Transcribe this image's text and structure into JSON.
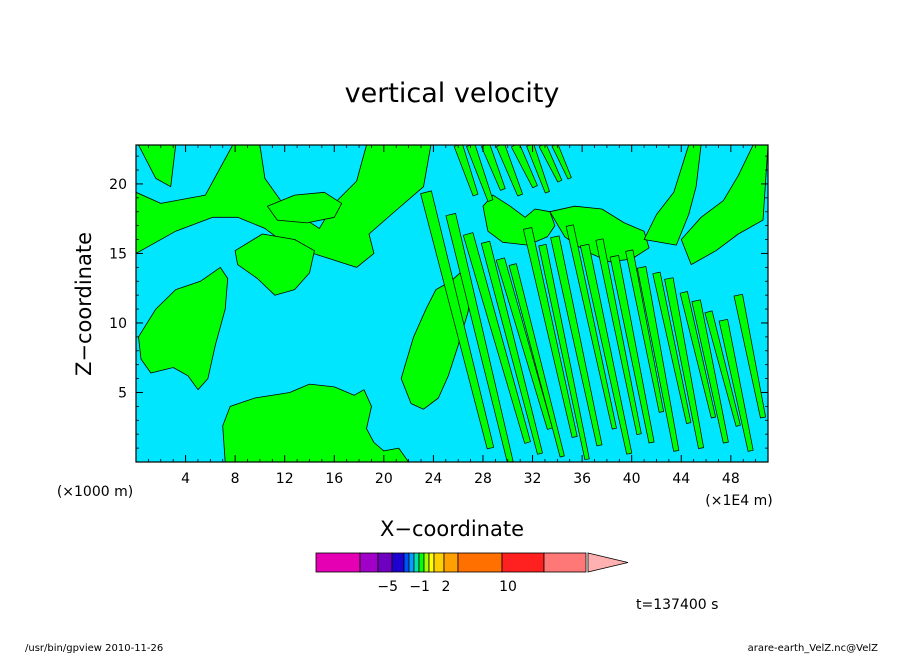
{
  "chart_data": {
    "type": "heatmap",
    "title": "vertical velocity",
    "xlabel": "X−coordinate",
    "ylabel": "Z−coordinate",
    "x_unit_left": "(×1000 m)",
    "x_unit_right": "(×1E4 m)",
    "xlim": [
      0,
      51
    ],
    "ylim": [
      0,
      22.8
    ],
    "x_ticks": [
      4,
      8,
      12,
      16,
      20,
      24,
      28,
      32,
      36,
      40,
      44,
      48
    ],
    "y_ticks": [
      5,
      10,
      15,
      20
    ],
    "time_label": "t=137400 s",
    "colorbar": {
      "colors": [
        "#e600b4",
        "#a000c8",
        "#7000c0",
        "#1e00d0",
        "#0050ff",
        "#00a0ff",
        "#00e0b0",
        "#00ff00",
        "#a0ff00",
        "#ffff00",
        "#ffd000",
        "#ffa000",
        "#ff7000",
        "#ff2020",
        "#ff7878",
        "#ffb0b0"
      ],
      "labels": [
        {
          "text": "−5",
          "at": 0.36
        },
        {
          "text": "−1",
          "at": 0.53
        },
        {
          "text": "2",
          "at": 0.67
        },
        {
          "text": "10",
          "at": 1.0
        }
      ]
    },
    "fill_colors": {
      "negative": "#00e6ff",
      "positive": "#00ff00"
    },
    "contours": {
      "blobs": [
        [
          0.2,
          22.8,
          1.6,
          20.4,
          2.8,
          19.8,
          3.2,
          22.8
        ],
        [
          0.0,
          19.4,
          2.0,
          18.6,
          5.6,
          19.2,
          7.8,
          22.8,
          10.0,
          22.8,
          10.4,
          20.4,
          12.0,
          18.4,
          14.8,
          16.8,
          16.0,
          18.6,
          17.8,
          20.2,
          18.6,
          22.8,
          23.8,
          22.8,
          23.2,
          19.8,
          20.6,
          17.8,
          18.8,
          16.4,
          19.2,
          15.0,
          17.8,
          14.0,
          15.0,
          14.8,
          12.2,
          15.6,
          10.4,
          16.8,
          8.2,
          17.6,
          6.2,
          17.6,
          3.2,
          16.6,
          0.0,
          15.0
        ],
        [
          8.0,
          15.2,
          10.2,
          16.4,
          12.8,
          16.0,
          14.4,
          15.2,
          14.0,
          13.6,
          12.8,
          12.4,
          11.2,
          12.0,
          9.8,
          13.2,
          8.2,
          14.2
        ],
        [
          0.2,
          9.0,
          1.6,
          11.0,
          3.2,
          12.4,
          5.2,
          13.0,
          6.8,
          14.0,
          7.4,
          13.2,
          7.2,
          11.0,
          6.4,
          8.4,
          5.8,
          6.0,
          5.0,
          5.2,
          4.2,
          6.2,
          3.0,
          6.8,
          1.2,
          6.4,
          0.4,
          7.4
        ],
        [
          10.6,
          18.4,
          12.8,
          19.2,
          15.2,
          19.4,
          16.6,
          18.6,
          16.0,
          17.6,
          13.8,
          17.2,
          11.4,
          17.4
        ],
        [
          7.2,
          0.0,
          7.0,
          2.6,
          7.6,
          4.0,
          9.6,
          4.6,
          12.4,
          5.0,
          14.0,
          5.6,
          16.0,
          5.4,
          17.6,
          4.8,
          18.4,
          5.2,
          19.0,
          4.0,
          18.6,
          2.4,
          19.2,
          1.4,
          20.0,
          0.8,
          21.2,
          1.0,
          22.0,
          0.0
        ],
        [
          21.4,
          6.0,
          21.8,
          7.2,
          22.4,
          9.0,
          23.4,
          11.0,
          24.2,
          12.4,
          25.4,
          13.0,
          26.4,
          13.8,
          27.0,
          12.8,
          26.8,
          10.8,
          26.0,
          8.4,
          25.2,
          6.2,
          24.4,
          4.6,
          23.2,
          3.8,
          22.2,
          4.2
        ],
        [
          28.0,
          18.4,
          28.8,
          19.2,
          30.2,
          18.4,
          31.4,
          17.6,
          32.2,
          18.2,
          33.4,
          18.0,
          33.8,
          17.0,
          33.2,
          16.2,
          31.6,
          15.6,
          29.6,
          15.8,
          28.4,
          16.6
        ],
        [
          33.4,
          18.0,
          35.4,
          18.4,
          37.6,
          18.2,
          39.4,
          17.2,
          41.0,
          16.6,
          41.4,
          15.4,
          40.0,
          14.6,
          38.2,
          14.4,
          36.2,
          15.2,
          34.6,
          16.2
        ],
        [
          44.8,
          14.2,
          46.8,
          15.2,
          48.6,
          16.4,
          50.6,
          17.4,
          51.0,
          22.8,
          49.8,
          22.8,
          48.6,
          20.6,
          47.4,
          18.8,
          45.6,
          17.6,
          44.0,
          16.0
        ],
        [
          41.0,
          16.0,
          42.0,
          17.8,
          43.4,
          19.4,
          44.6,
          22.8,
          45.6,
          22.8,
          45.2,
          19.8,
          44.6,
          17.8,
          43.6,
          15.6
        ]
      ],
      "stripes": [
        [
          23.4,
          19.4,
          28.6,
          1.0,
          0.9
        ],
        [
          25.4,
          17.8,
          30.2,
          0.0,
          0.8
        ],
        [
          26.8,
          16.4,
          31.6,
          1.4,
          0.8
        ],
        [
          28.2,
          15.8,
          32.6,
          0.6,
          0.7
        ],
        [
          29.4,
          14.6,
          33.4,
          2.4,
          0.7
        ],
        [
          30.4,
          14.2,
          34.4,
          0.4,
          0.6
        ],
        [
          31.6,
          16.8,
          35.4,
          1.8,
          0.7
        ],
        [
          32.8,
          15.6,
          36.4,
          0.2,
          0.6
        ],
        [
          33.8,
          16.2,
          37.4,
          1.2,
          0.7
        ],
        [
          35.0,
          17.0,
          38.6,
          2.4,
          0.6
        ],
        [
          36.2,
          15.6,
          39.8,
          0.6,
          0.7
        ],
        [
          37.4,
          16.0,
          40.6,
          2.0,
          0.6
        ],
        [
          38.6,
          14.8,
          41.6,
          1.4,
          0.7
        ],
        [
          39.8,
          15.2,
          42.4,
          3.6,
          0.6
        ],
        [
          40.8,
          14.0,
          43.6,
          0.8,
          0.7
        ],
        [
          42.0,
          13.6,
          44.6,
          2.8,
          0.6
        ],
        [
          43.0,
          13.2,
          45.6,
          1.0,
          0.7
        ],
        [
          44.2,
          12.2,
          46.6,
          3.2,
          0.6
        ],
        [
          45.2,
          11.6,
          47.6,
          1.4,
          0.7
        ],
        [
          46.2,
          10.8,
          48.6,
          2.6,
          0.6
        ],
        [
          47.4,
          10.2,
          49.6,
          0.8,
          0.7
        ],
        [
          48.6,
          12.0,
          50.6,
          3.2,
          0.7
        ],
        [
          26.0,
          22.8,
          27.4,
          19.2,
          0.7
        ],
        [
          27.0,
          22.8,
          28.6,
          18.8,
          0.7
        ],
        [
          28.2,
          22.8,
          29.6,
          19.6,
          0.7
        ],
        [
          29.4,
          22.8,
          31.0,
          19.2,
          0.7
        ],
        [
          30.6,
          22.8,
          32.2,
          19.8,
          0.7
        ],
        [
          31.8,
          22.8,
          33.2,
          19.4,
          0.6
        ],
        [
          32.8,
          22.8,
          34.2,
          20.2,
          0.6
        ],
        [
          33.8,
          22.8,
          35.0,
          20.4,
          0.5
        ]
      ]
    }
  },
  "footer": {
    "left": "/usr/bin/gpview   2010-11-26",
    "right": "arare-earth_VelZ.nc@VelZ"
  }
}
